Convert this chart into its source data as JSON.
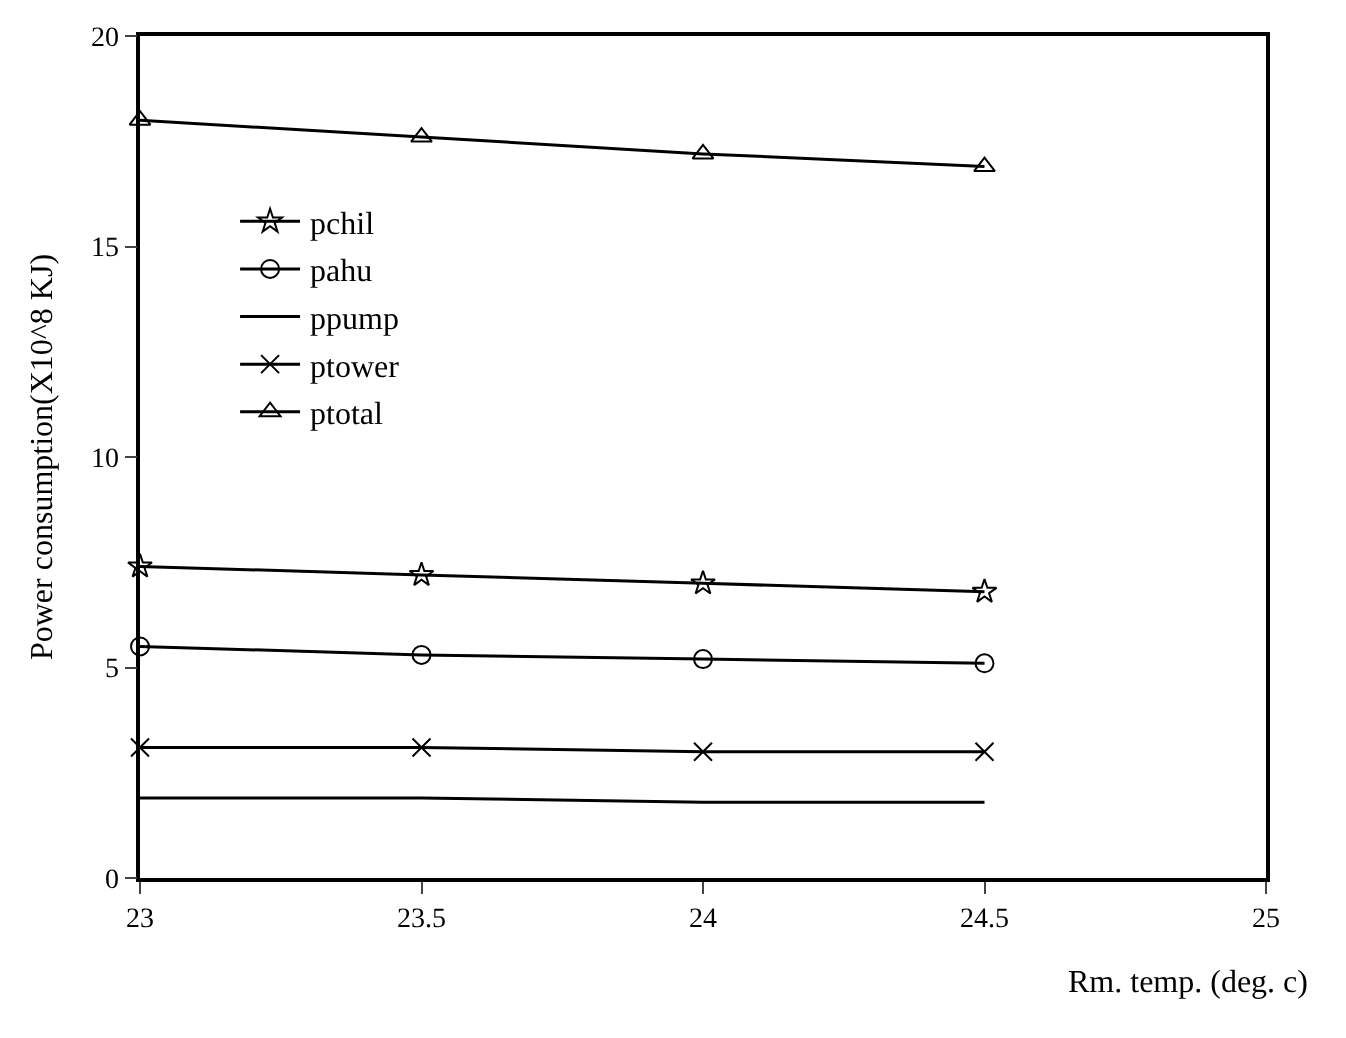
{
  "chart_data": {
    "type": "line",
    "xlabel": "Rm. temp. (deg. c)",
    "ylabel": "Power consumption(X10^8 KJ)",
    "x": [
      23,
      23.5,
      24,
      24.5
    ],
    "series": [
      {
        "name": "pchil",
        "color": "#000000",
        "marker": "star",
        "values": [
          7.4,
          7.2,
          7.0,
          6.8
        ]
      },
      {
        "name": "pahu",
        "color": "#000000",
        "marker": "circle",
        "values": [
          5.5,
          5.3,
          5.2,
          5.1
        ]
      },
      {
        "name": "ppump",
        "color": "#000000",
        "marker": "none",
        "values": [
          1.9,
          1.9,
          1.8,
          1.8
        ]
      },
      {
        "name": "ptower",
        "color": "#000000",
        "marker": "cross",
        "values": [
          3.1,
          3.1,
          3.0,
          3.0
        ]
      },
      {
        "name": "ptotal",
        "color": "#000000",
        "marker": "triangle",
        "values": [
          18.0,
          17.6,
          17.2,
          16.9
        ]
      }
    ],
    "xlim": [
      23,
      25
    ],
    "xticks": [
      23,
      23.5,
      24,
      24.5,
      25
    ],
    "ylim": [
      0,
      20
    ],
    "yticks": [
      0,
      5,
      10,
      15,
      20
    ],
    "legend": "top left",
    "line_style": "solid"
  }
}
